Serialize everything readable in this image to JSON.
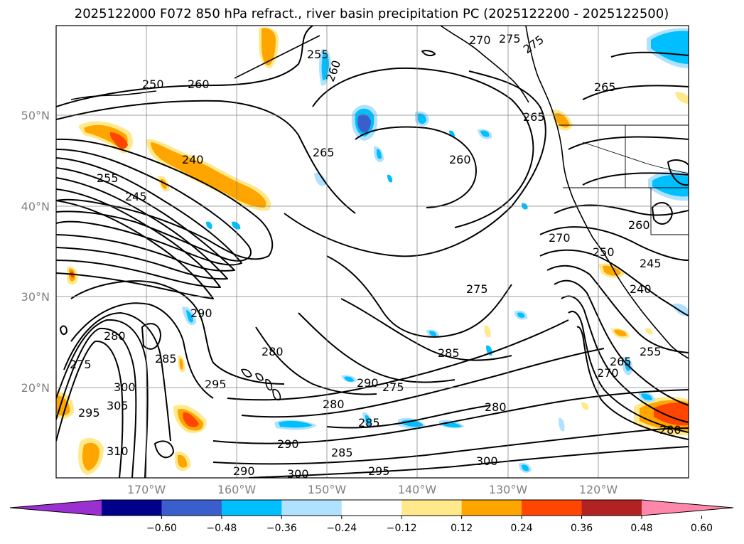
{
  "title": "2025122000 F072 850 hPa refract., river basin precipitation PC (2025122200 - 2025122500)",
  "lat_labels": [
    "50°N",
    "40°N",
    "30°N",
    "20°N"
  ],
  "lon_labels": [
    "170°W",
    "160°W",
    "150°W",
    "140°W",
    "130°W",
    "120°W"
  ],
  "colorbar": {
    "ticks": [
      "−0.60",
      "−0.48",
      "−0.36",
      "−0.24",
      "−0.12",
      "0.12",
      "0.24",
      "0.36",
      "0.48",
      "0.60"
    ],
    "colors": [
      "#9b30d0",
      "#00008b",
      "#3a5fcd",
      "#00bfff",
      "#b0e2ff",
      "#ffffff",
      "#ffe98a",
      "#ffa500",
      "#ff4500",
      "#b22222",
      "#ff88aa"
    ]
  },
  "contour_labels": [
    "275",
    "270",
    "275",
    "255",
    "260",
    "250",
    "260",
    "265",
    "265",
    "240",
    "255",
    "245",
    "265",
    "260",
    "270",
    "260",
    "250",
    "245",
    "240",
    "275",
    "255",
    "265",
    "270",
    "290",
    "280",
    "285",
    "285",
    "275",
    "295",
    "290",
    "280",
    "285",
    "290",
    "285",
    "280",
    "300",
    "295",
    "290",
    "300",
    "310",
    "300",
    "305",
    "295",
    "275",
    "280",
    "280"
  ],
  "colors": {
    "text": "#000000",
    "grid": "#808080",
    "tick_label": "#808080"
  }
}
